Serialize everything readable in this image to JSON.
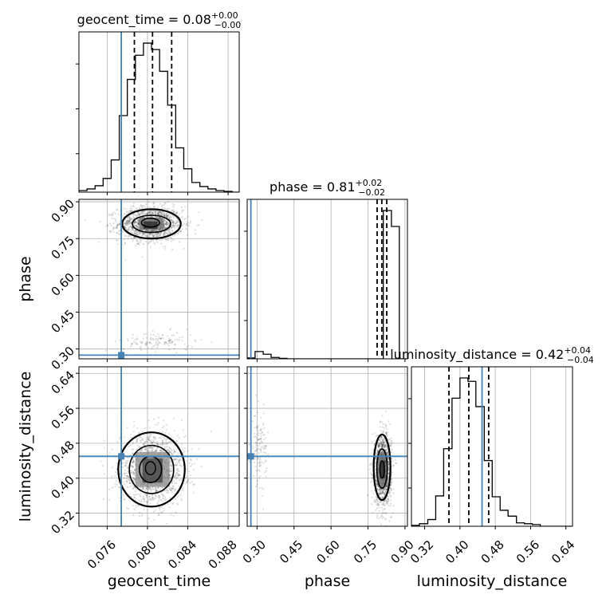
{
  "chart_data": {
    "type": "corner",
    "parameters": [
      "geocent_time",
      "phase",
      "luminosity_distance"
    ],
    "axis_labels": {
      "geocent_time": "geocent_time",
      "phase": "phase",
      "luminosity_distance": "luminosity_distance"
    },
    "truths": {
      "geocent_time": 0.0774,
      "phase": 0.275,
      "luminosity_distance": 0.45
    },
    "truth_color": "#4682b4",
    "ranges": {
      "geocent_time": [
        0.0732,
        0.0891
      ],
      "phase": [
        0.26,
        0.91
      ],
      "luminosity_distance": [
        0.29,
        0.655
      ]
    },
    "ticks": {
      "geocent_time": {
        "values": [
          0.076,
          0.08,
          0.084,
          0.088
        ],
        "labels": [
          "0.076",
          "0.080",
          "0.084",
          "0.088"
        ]
      },
      "phase": {
        "values": [
          0.3,
          0.45,
          0.6,
          0.75,
          0.9
        ],
        "labels": [
          "0.30",
          "0.45",
          "0.60",
          "0.75",
          "0.90"
        ]
      },
      "luminosity_distance": {
        "values": [
          0.32,
          0.4,
          0.48,
          0.56,
          0.64
        ],
        "labels": [
          "0.32",
          "0.40",
          "0.48",
          "0.56",
          "0.64"
        ]
      }
    },
    "titles": {
      "geocent_time": {
        "name": "geocent_time",
        "median": "0.08",
        "plus": "+0.00",
        "minus": "−0.00"
      },
      "phase": {
        "name": "phase",
        "median": "0.81",
        "plus": "+0.02",
        "minus": "−0.02"
      },
      "luminosity_distance": {
        "name": "luminosity_distance",
        "median": "0.42",
        "plus": "+0.04",
        "minus": "−0.04"
      }
    },
    "quantiles": {
      "geocent_time": [
        0.0787,
        0.0805,
        0.0824
      ],
      "phase": [
        0.787,
        0.806,
        0.826
      ],
      "luminosity_distance": [
        0.375,
        0.42,
        0.465
      ]
    },
    "histograms": {
      "geocent_time": {
        "edges": [
          0.0732,
          0.074,
          0.0748,
          0.0756,
          0.0764,
          0.0772,
          0.078,
          0.0788,
          0.0796,
          0.0804,
          0.0812,
          0.082,
          0.0828,
          0.0836,
          0.0844,
          0.0852,
          0.086,
          0.0868,
          0.0876,
          0.0884,
          0.0892
        ],
        "counts": [
          2,
          4,
          8,
          17,
          40,
          95,
          140,
          170,
          185,
          177,
          150,
          108,
          55,
          29,
          12,
          7,
          4,
          2,
          1,
          0
        ]
      },
      "phase": {
        "edges": [
          0.26,
          0.292,
          0.325,
          0.357,
          0.39,
          0.422,
          0.455,
          0.487,
          0.52,
          0.552,
          0.585,
          0.617,
          0.65,
          0.682,
          0.715,
          0.747,
          0.78,
          0.812,
          0.845,
          0.877,
          0.91
        ],
        "counts": [
          2,
          16,
          10,
          3,
          1,
          0,
          0,
          0,
          0,
          0,
          0,
          0,
          0,
          0,
          0,
          0,
          0,
          325,
          290,
          0
        ]
      },
      "luminosity_distance": {
        "edges": [
          0.29,
          0.308,
          0.327,
          0.345,
          0.363,
          0.382,
          0.4,
          0.418,
          0.436,
          0.455,
          0.473,
          0.491,
          0.509,
          0.528,
          0.546,
          0.564,
          0.582,
          0.601,
          0.619,
          0.637,
          0.655
        ],
        "counts": [
          1,
          3,
          8,
          36,
          92,
          152,
          176,
          172,
          142,
          78,
          35,
          19,
          12,
          4,
          3,
          2,
          0,
          0,
          0,
          0
        ]
      }
    },
    "scatter_clusters": {
      "phase_vs_geocent_time": [
        {
          "x_mean": 0.0803,
          "x_sd": 0.0016,
          "y_mean": 0.81,
          "y_sd": 0.035,
          "weight": 0.92
        },
        {
          "x_mean": 0.0812,
          "x_sd": 0.0018,
          "y_mean": 0.33,
          "y_sd": 0.02,
          "weight": 0.08
        }
      ],
      "luminosity_distance_vs_geocent_time": [
        {
          "x_mean": 0.0805,
          "x_sd": 0.0016,
          "y_mean": 0.42,
          "y_sd": 0.04,
          "weight": 1.0
        }
      ],
      "luminosity_distance_vs_phase": [
        {
          "x_mean": 0.31,
          "x_sd": 0.015,
          "y_mean": 0.47,
          "y_sd": 0.04,
          "weight": 0.08
        },
        {
          "x_mean": 0.81,
          "x_sd": 0.017,
          "y_mean": 0.42,
          "y_sd": 0.04,
          "weight": 0.92
        }
      ]
    },
    "density_blocks": {
      "phase_vs_geocent_time": [
        {
          "x": [
            0.0792,
            0.0816
          ],
          "y": [
            0.785,
            0.835
          ],
          "shade": 0.55
        },
        {
          "x": [
            0.0796,
            0.081
          ],
          "y": [
            0.79,
            0.82
          ],
          "shade": 0.85
        }
      ],
      "luminosity_distance_vs_geocent_time": [
        {
          "x": [
            0.0788,
            0.0822
          ],
          "y": [
            0.38,
            0.46
          ],
          "shade": 0.45
        },
        {
          "x": [
            0.0795,
            0.0815
          ],
          "y": [
            0.39,
            0.445
          ],
          "shade": 0.75
        }
      ],
      "luminosity_distance_vs_phase": [
        {
          "x": [
            0.79,
            0.83
          ],
          "y": [
            0.38,
            0.46
          ],
          "shade": 0.55
        },
        {
          "x": [
            0.8,
            0.82
          ],
          "y": [
            0.4,
            0.44
          ],
          "shade": 0.85
        }
      ]
    },
    "contours": {
      "phase_vs_geocent_time": [
        {
          "cx": 0.0804,
          "cy": 0.81,
          "rx": 0.0029,
          "ry": 0.06,
          "width": 2.2
        },
        {
          "cx": 0.0804,
          "cy": 0.81,
          "rx": 0.0019,
          "ry": 0.035,
          "width": 1.6
        },
        {
          "cx": 0.0803,
          "cy": 0.815,
          "rx": 0.0009,
          "ry": 0.018,
          "width": 1.6
        }
      ],
      "luminosity_distance_vs_geocent_time": [
        {
          "cx": 0.0804,
          "cy": 0.42,
          "rx": 0.0033,
          "ry": 0.085,
          "width": 2.2
        },
        {
          "cx": 0.0804,
          "cy": 0.42,
          "rx": 0.0022,
          "ry": 0.055,
          "width": 1.6
        },
        {
          "cx": 0.0803,
          "cy": 0.42,
          "rx": 0.0011,
          "ry": 0.03,
          "width": 1.6
        },
        {
          "cx": 0.0803,
          "cy": 0.423,
          "rx": 0.0005,
          "ry": 0.015,
          "width": 1.4
        }
      ],
      "luminosity_distance_vs_phase": [
        {
          "cx": 0.807,
          "cy": 0.425,
          "rx": 0.034,
          "ry": 0.075,
          "width": 2.2
        },
        {
          "cx": 0.807,
          "cy": 0.422,
          "rx": 0.021,
          "ry": 0.045,
          "width": 1.6
        },
        {
          "cx": 0.807,
          "cy": 0.42,
          "rx": 0.009,
          "ry": 0.02,
          "width": 1.4
        }
      ]
    },
    "grid": true
  }
}
